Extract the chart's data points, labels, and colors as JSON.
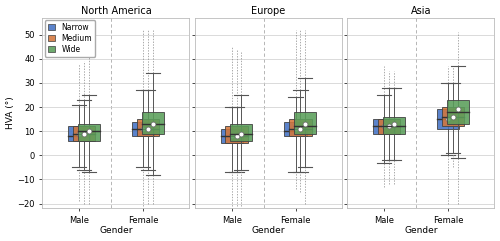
{
  "regions": [
    "North America",
    "Europe",
    "Asia"
  ],
  "genders": [
    "Male",
    "Female"
  ],
  "width_groups": [
    "Narrow",
    "Medium",
    "Wide"
  ],
  "colors": [
    "#4472C4",
    "#D4763B",
    "#5A9E5A"
  ],
  "background": "#ffffff",
  "ylabel": "HVA (°)",
  "xlabel": "Gender",
  "ylim": [
    -22,
    57
  ],
  "yticks": [
    -20,
    -10,
    0,
    10,
    20,
    30,
    40,
    50
  ],
  "boxes": {
    "North America": {
      "Male": {
        "Narrow": {
          "q1": 6,
          "median": 8,
          "q3": 12,
          "whisker_low": -5,
          "whisker_high": 21,
          "mean": 9,
          "flier_low": -19,
          "flier_high": 38
        },
        "Medium": {
          "q1": 6,
          "median": 9,
          "q3": 12,
          "whisker_low": -6,
          "whisker_high": 23,
          "mean": 9,
          "flier_low": -20,
          "flier_high": 39
        },
        "Wide": {
          "q1": 6,
          "median": 10,
          "q3": 13,
          "whisker_low": -7,
          "whisker_high": 25,
          "mean": 10,
          "flier_low": -20,
          "flier_high": 52
        }
      },
      "Female": {
        "Narrow": {
          "q1": 8,
          "median": 11,
          "q3": 14,
          "whisker_low": -5,
          "whisker_high": 27,
          "mean": 11,
          "flier_low": -21,
          "flier_high": 52
        },
        "Medium": {
          "q1": 8,
          "median": 11,
          "q3": 15,
          "whisker_low": -6,
          "whisker_high": 27,
          "mean": 11,
          "flier_low": -20,
          "flier_high": 52
        },
        "Wide": {
          "q1": 9,
          "median": 13,
          "q3": 18,
          "whisker_low": -8,
          "whisker_high": 34,
          "mean": 13,
          "flier_low": -20,
          "flier_high": 52
        }
      }
    },
    "Europe": {
      "Male": {
        "Narrow": {
          "q1": 5,
          "median": 8,
          "q3": 11,
          "whisker_low": -7,
          "whisker_high": 20,
          "mean": 8,
          "flier_low": -21,
          "flier_high": 45
        },
        "Medium": {
          "q1": 5,
          "median": 8,
          "q3": 12,
          "whisker_low": -7,
          "whisker_high": 20,
          "mean": 8,
          "flier_low": -21,
          "flier_high": 44
        },
        "Wide": {
          "q1": 6,
          "median": 9,
          "q3": 13,
          "whisker_low": -6,
          "whisker_high": 25,
          "mean": 9,
          "flier_low": -21,
          "flier_high": 43
        }
      },
      "Female": {
        "Narrow": {
          "q1": 8,
          "median": 10,
          "q3": 14,
          "whisker_low": -7,
          "whisker_high": 24,
          "mean": 11,
          "flier_low": -14,
          "flier_high": 52
        },
        "Medium": {
          "q1": 8,
          "median": 11,
          "q3": 15,
          "whisker_low": -7,
          "whisker_high": 27,
          "mean": 11,
          "flier_low": -15,
          "flier_high": 52
        },
        "Wide": {
          "q1": 9,
          "median": 12,
          "q3": 18,
          "whisker_low": -5,
          "whisker_high": 32,
          "mean": 13,
          "flier_low": -20,
          "flier_high": 52
        }
      }
    },
    "Asia": {
      "Male": {
        "Narrow": {
          "q1": 9,
          "median": 12,
          "q3": 15,
          "whisker_low": -3,
          "whisker_high": 25,
          "mean": 12,
          "flier_low": -13,
          "flier_high": 37
        },
        "Medium": {
          "q1": 9,
          "median": 12,
          "q3": 15,
          "whisker_low": -2,
          "whisker_high": 28,
          "mean": 12,
          "flier_low": -12,
          "flier_high": 35
        },
        "Wide": {
          "q1": 9,
          "median": 12,
          "q3": 16,
          "whisker_low": -2,
          "whisker_high": 28,
          "mean": 13,
          "flier_low": -12,
          "flier_high": 35
        }
      },
      "Female": {
        "Narrow": {
          "q1": 11,
          "median": 15,
          "q3": 19,
          "whisker_low": 0,
          "whisker_high": 30,
          "mean": 15,
          "flier_low": -20,
          "flier_high": 37
        },
        "Medium": {
          "q1": 12,
          "median": 16,
          "q3": 20,
          "whisker_low": 1,
          "whisker_high": 30,
          "mean": 16,
          "flier_low": -5,
          "flier_high": 37
        },
        "Wide": {
          "q1": 13,
          "median": 18,
          "q3": 23,
          "whisker_low": -1,
          "whisker_high": 37,
          "mean": 19,
          "flier_low": -20,
          "flier_high": 51
        }
      }
    }
  }
}
